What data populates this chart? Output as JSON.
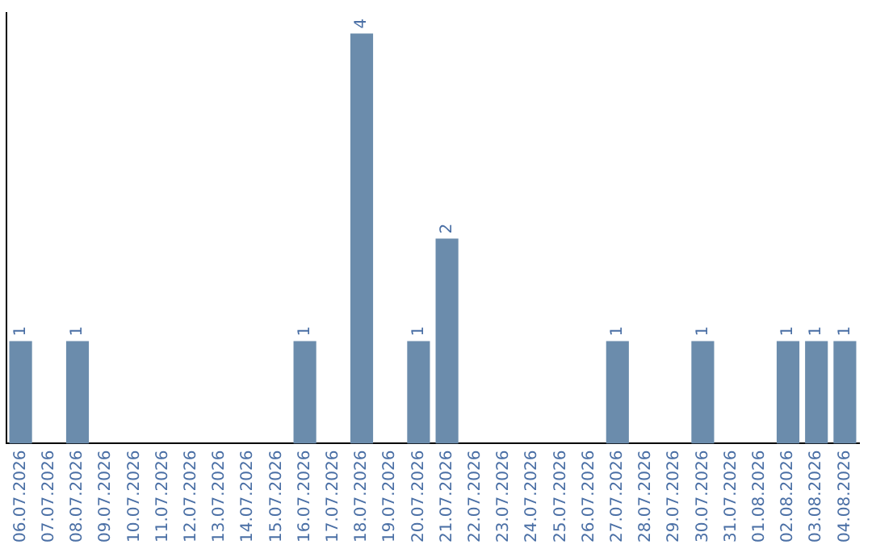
{
  "chart_data": {
    "type": "bar",
    "categories": [
      "06.07.2026",
      "07.07.2026",
      "08.07.2026",
      "09.07.2026",
      "10.07.2026",
      "11.07.2026",
      "12.07.2026",
      "13.07.2026",
      "14.07.2026",
      "15.07.2026",
      "16.07.2026",
      "17.07.2026",
      "18.07.2026",
      "19.07.2026",
      "20.07.2026",
      "21.07.2026",
      "22.07.2026",
      "23.07.2026",
      "24.07.2026",
      "25.07.2026",
      "26.07.2026",
      "27.07.2026",
      "28.07.2026",
      "29.07.2026",
      "30.07.2026",
      "31.07.2026",
      "01.08.2026",
      "02.08.2026",
      "03.08.2026",
      "04.08.2026"
    ],
    "values": [
      1,
      0,
      1,
      0,
      0,
      0,
      0,
      0,
      0,
      0,
      1,
      0,
      4,
      0,
      1,
      2,
      0,
      0,
      0,
      0,
      0,
      1,
      0,
      0,
      1,
      0,
      0,
      1,
      1,
      1
    ],
    "value_labels": [
      "1",
      null,
      "1",
      null,
      null,
      null,
      null,
      null,
      null,
      null,
      "1",
      null,
      "4",
      null,
      "1",
      "2",
      null,
      null,
      null,
      null,
      null,
      "1",
      null,
      null,
      "1",
      null,
      null,
      "1",
      "1",
      "1"
    ],
    "color": "#6b8cac",
    "ylim": [
      0,
      4.2
    ],
    "grid": false,
    "legend": false,
    "tick_labels": "x"
  }
}
